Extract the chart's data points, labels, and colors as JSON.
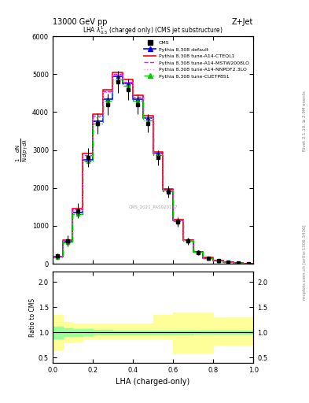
{
  "title_left": "13000 GeV pp",
  "title_right": "Z+Jet",
  "plot_title": "LHA $\\lambda^{1}_{0.5}$ (charged only) (CMS jet substructure)",
  "xlabel": "LHA (charged-only)",
  "ylabel_main": "$\\frac{1}{\\mathrm{N}} \\frac{d\\mathrm{N}}{d p_{T} d\\lambda}$",
  "ylabel_ratio": "Ratio to CMS",
  "right_label_top": "Rivet 3.1.10, ≥ 2.9M events",
  "right_label_bottom": "mcplots.cern.ch [arXiv:1306.3436]",
  "watermark": "CMS_2021_PAS920187",
  "lha_bins": [
    0.0,
    0.05,
    0.1,
    0.15,
    0.2,
    0.25,
    0.3,
    0.35,
    0.4,
    0.45,
    0.5,
    0.55,
    0.6,
    0.65,
    0.7,
    0.75,
    0.8,
    0.85,
    0.9,
    0.95,
    1.0
  ],
  "cms_values": [
    200,
    600,
    1400,
    2800,
    3700,
    4200,
    4800,
    4600,
    4200,
    3700,
    2800,
    1900,
    1100,
    600,
    300,
    150,
    80,
    40,
    15,
    5
  ],
  "cms_errors": [
    80,
    150,
    200,
    250,
    270,
    280,
    290,
    280,
    260,
    240,
    200,
    160,
    120,
    90,
    60,
    40,
    25,
    15,
    8,
    3
  ],
  "default_values": [
    180,
    580,
    1350,
    2750,
    3750,
    4350,
    4950,
    4750,
    4350,
    3850,
    2900,
    1950,
    1150,
    620,
    310,
    155,
    82,
    42,
    16,
    5
  ],
  "cteql1_values": [
    190,
    620,
    1450,
    2900,
    3950,
    4600,
    5050,
    4850,
    4450,
    3900,
    2950,
    1980,
    1160,
    630,
    315,
    158,
    83,
    43,
    16,
    5
  ],
  "mstw_values": [
    185,
    610,
    1430,
    2870,
    3900,
    4550,
    5000,
    4800,
    4400,
    3870,
    2920,
    1960,
    1150,
    625,
    312,
    156,
    82,
    42,
    16,
    5
  ],
  "nnpdf_values": [
    182,
    600,
    1410,
    2840,
    3870,
    4520,
    4980,
    4780,
    4380,
    3850,
    2900,
    1940,
    1140,
    620,
    310,
    155,
    81,
    41,
    15,
    5
  ],
  "cuetp_values": [
    170,
    560,
    1320,
    2700,
    3700,
    4300,
    4850,
    4700,
    4300,
    3780,
    2870,
    1920,
    1120,
    605,
    305,
    152,
    80,
    40,
    15,
    5
  ],
  "ratio_green_lo": [
    0.88,
    0.92,
    0.93,
    0.94,
    0.95,
    0.95,
    0.96,
    0.96,
    0.96,
    0.96,
    0.96,
    0.96,
    0.96,
    0.96,
    0.97,
    0.97,
    0.97,
    0.97,
    0.97,
    0.97
  ],
  "ratio_green_hi": [
    1.12,
    1.08,
    1.07,
    1.06,
    1.05,
    1.05,
    1.04,
    1.04,
    1.04,
    1.04,
    1.04,
    1.04,
    1.04,
    1.04,
    1.03,
    1.03,
    1.03,
    1.03,
    1.03,
    1.03
  ],
  "ratio_yellow_lo": [
    0.65,
    0.8,
    0.82,
    0.88,
    0.88,
    0.88,
    0.88,
    0.88,
    0.88,
    0.88,
    0.88,
    0.88,
    0.6,
    0.6,
    0.6,
    0.6,
    0.75,
    0.75,
    0.75,
    0.75
  ],
  "ratio_yellow_hi": [
    1.35,
    1.2,
    1.18,
    1.18,
    1.18,
    1.18,
    1.18,
    1.18,
    1.18,
    1.18,
    1.35,
    1.35,
    1.4,
    1.4,
    1.4,
    1.4,
    1.3,
    1.3,
    1.3,
    1.3
  ],
  "color_default": "#0000ff",
  "color_cteql1": "#ff0000",
  "color_mstw": "#ff00ff",
  "color_nnpdf": "#ff88ff",
  "color_cuetp": "#00cc00",
  "color_cms": "#000000",
  "color_yellow": "#ffff99",
  "color_green": "#99ff99",
  "ylim_main": [
    0,
    6000
  ],
  "ylim_ratio": [
    0.4,
    2.2
  ],
  "yticks_main": [
    0,
    1000,
    2000,
    3000,
    4000,
    5000,
    6000
  ],
  "yticks_ratio": [
    0.5,
    1.0,
    1.5,
    2.0
  ]
}
